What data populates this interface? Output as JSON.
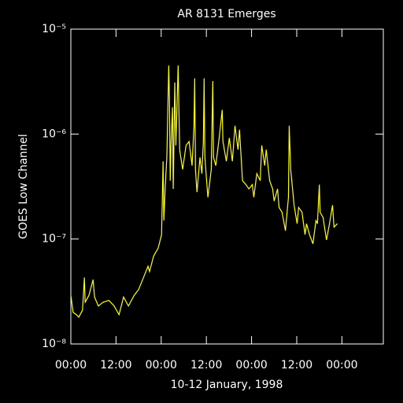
{
  "chart_data": {
    "type": "line",
    "title": "AR 8131 Emerges",
    "x_label": "10-12 January, 1998",
    "y_label": "GOES Low Channel",
    "log_y": true,
    "xlim": [
      0,
      83
    ],
    "xticks": [
      {
        "value": 0,
        "label": "00:00"
      },
      {
        "value": 12,
        "label": "12:00"
      },
      {
        "value": 24,
        "label": "00:00"
      },
      {
        "value": 36,
        "label": "12:00"
      },
      {
        "value": 48,
        "label": "00:00"
      },
      {
        "value": 60,
        "label": "12:00"
      },
      {
        "value": 72,
        "label": "00:00"
      }
    ],
    "ylim": [
      1e-08,
      1e-05
    ],
    "yticks": [
      {
        "value": 1e-08,
        "label": "10⁻⁸"
      },
      {
        "value": 1e-07,
        "label": "10⁻⁷"
      },
      {
        "value": 1e-06,
        "label": "10⁻⁶"
      },
      {
        "value": 1e-05,
        "label": "10⁻⁵"
      }
    ],
    "series": [
      {
        "color": "#ffff00",
        "x": [
          0,
          0.6,
          1.5,
          2.1,
          3.1,
          3.6,
          3.8,
          4.8,
          5.9,
          6.3,
          7.3,
          8.6,
          10.1,
          11.5,
          12.8,
          14.0,
          15.3,
          16.8,
          18.0,
          19.3,
          20.5,
          20.9,
          22.0,
          23.2,
          24.1,
          24.5,
          24.7,
          25.1,
          25.5,
          26.0,
          26.2,
          26.4,
          26.6,
          27.0,
          27.2,
          27.6,
          27.9,
          28.5,
          28.9,
          29.7,
          30.6,
          31.4,
          32.2,
          32.7,
          32.9,
          33.1,
          33.5,
          34.3,
          34.8,
          35.2,
          35.4,
          35.6,
          36.4,
          37.3,
          37.7,
          37.9,
          38.5,
          39.4,
          40.2,
          40.4,
          41.3,
          42.1,
          42.9,
          43.6,
          44.4,
          44.8,
          45.6,
          46.5,
          47.3,
          48.2,
          48.6,
          49.4,
          50.3,
          50.7,
          51.5,
          51.9,
          52.8,
          53.6,
          54.0,
          54.9,
          55.3,
          56.1,
          57.0,
          57.8,
          58.0,
          58.4,
          59.3,
          60.1,
          60.5,
          61.4,
          62.2,
          62.6,
          63.4,
          64.3,
          65.1,
          65.5,
          66.0,
          66.2,
          67.0,
          67.9,
          68.7,
          69.5,
          69.9,
          70.8
        ],
        "values": [
          2.9e-08,
          2e-08,
          1.9e-08,
          1.8e-08,
          2.1e-08,
          4.3e-08,
          2.5e-08,
          2.9e-08,
          4.1e-08,
          2.8e-08,
          2.3e-08,
          2.5e-08,
          2.6e-08,
          2.3e-08,
          1.9e-08,
          2.8e-08,
          2.3e-08,
          2.9e-08,
          3.3e-08,
          4.3e-08,
          5.5e-08,
          4.9e-08,
          6.9e-08,
          8.2e-08,
          1.1e-07,
          5.5e-07,
          1.5e-07,
          3.3e-07,
          6e-07,
          4.5e-06,
          2e-06,
          3.6e-07,
          7.8e-07,
          1.8e-06,
          3e-07,
          3.1e-06,
          7.8e-07,
          4.5e-06,
          7.1e-07,
          4.6e-07,
          7.8e-07,
          8.5e-07,
          5e-07,
          1.2e-06,
          3.4e-06,
          4.6e-07,
          2.8e-07,
          6e-07,
          4.2e-07,
          8.5e-07,
          3.4e-06,
          6e-07,
          2.5e-07,
          4.6e-07,
          3.2e-06,
          6e-07,
          5e-07,
          9.2e-07,
          1.7e-06,
          8.5e-07,
          5.5e-07,
          9.2e-07,
          5.5e-07,
          1.2e-06,
          7.1e-07,
          1.1e-06,
          3.6e-07,
          3.3e-07,
          3e-07,
          3.3e-07,
          2.5e-07,
          4.2e-07,
          3.6e-07,
          7.8e-07,
          5e-07,
          7.1e-07,
          3.6e-07,
          3e-07,
          2.3e-07,
          3e-07,
          2e-07,
          1.8e-07,
          1.2e-07,
          2.5e-07,
          1.2e-06,
          4.6e-07,
          2.1e-07,
          1.4e-07,
          2e-07,
          1.8e-07,
          1.1e-07,
          1.4e-07,
          1.1e-07,
          9e-08,
          1.5e-07,
          1.4e-07,
          3.3e-07,
          1.8e-07,
          1.6e-07,
          9.8e-08,
          1.4e-07,
          2.1e-07,
          1.3e-07,
          1.4e-07
        ]
      }
    ]
  }
}
